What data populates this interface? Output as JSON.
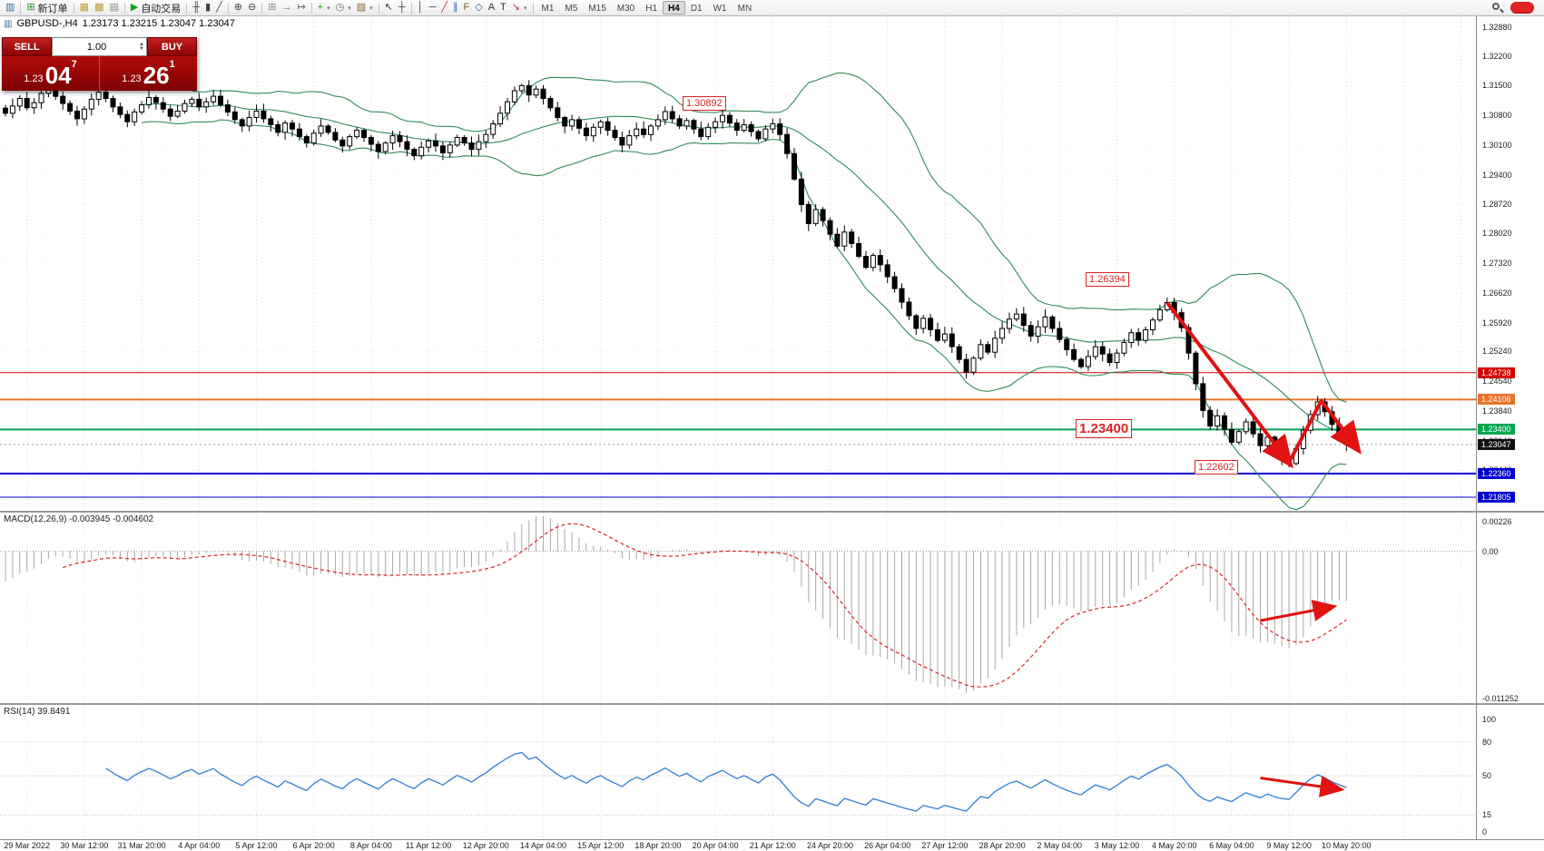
{
  "toolbar": {
    "icons": [
      {
        "n": "chart-window-icon",
        "g": "▥",
        "c": "#3c6ea5"
      },
      {
        "t": "sep"
      },
      {
        "n": "new-order-button",
        "g": "⊞",
        "c": "#1f8f1f",
        "lbl": "新订单"
      },
      {
        "t": "sep"
      },
      {
        "n": "profiles-icon",
        "g": "▦",
        "c": "#c49a3c"
      },
      {
        "n": "charts-window-icon",
        "g": "▩",
        "c": "#c49a3c"
      },
      {
        "n": "data-window-icon",
        "g": "▤",
        "c": "#8a8a8a"
      },
      {
        "t": "sep"
      },
      {
        "n": "auto-trading-button",
        "g": "▶",
        "c": "#12a012",
        "lbl": "自动交易"
      },
      {
        "t": "sep"
      },
      {
        "n": "bar-chart-icon",
        "g": "╫",
        "c": "#444444"
      },
      {
        "n": "candlestick-chart-icon",
        "g": "▮",
        "c": "#444444"
      },
      {
        "n": "line-chart-icon",
        "g": "╱",
        "c": "#444444"
      },
      {
        "t": "sep"
      },
      {
        "n": "zoom-in-icon",
        "g": "⊕",
        "c": "#444444"
      },
      {
        "n": "zoom-out-icon",
        "g": "⊖",
        "c": "#444444"
      },
      {
        "t": "sep"
      },
      {
        "n": "tile-windows-icon",
        "g": "⊞",
        "c": "#8a8a8a"
      },
      {
        "n": "auto-scroll-icon",
        "g": "→",
        "c": "#666666"
      },
      {
        "n": "chart-shift-icon",
        "g": "↦",
        "c": "#666666"
      },
      {
        "t": "sep"
      },
      {
        "n": "indicators-icon",
        "g": "+",
        "c": "#12a012",
        "dd": 1
      },
      {
        "n": "periods-icon",
        "g": "◷",
        "c": "#666666",
        "dd": 1
      },
      {
        "n": "templates-icon",
        "g": "▨",
        "c": "#8a6a3a",
        "dd": 1
      },
      {
        "t": "sep"
      },
      {
        "n": "cursor-icon",
        "g": "↖",
        "c": "#333333"
      },
      {
        "n": "crosshair-icon",
        "g": "┼",
        "c": "#333333"
      },
      {
        "t": "sep"
      },
      {
        "n": "vertical-line-icon",
        "g": "│",
        "c": "#333333"
      },
      {
        "n": "horizontal-line-icon",
        "g": "─",
        "c": "#333333"
      },
      {
        "n": "trendline-icon",
        "g": "╱",
        "c": "#c03030"
      },
      {
        "n": "channel-icon",
        "g": "∥",
        "c": "#3060c0"
      },
      {
        "n": "fibonacci-icon",
        "g": "F",
        "c": "#806020"
      },
      {
        "n": "shapes-icon",
        "g": "◇",
        "c": "#3060c0"
      },
      {
        "n": "text-icon",
        "g": "A",
        "c": "#333333"
      },
      {
        "n": "label-icon",
        "g": "T",
        "c": "#333333"
      },
      {
        "n": "arrows-icon",
        "g": "↘",
        "c": "#c03030",
        "dd": 1
      },
      {
        "t": "sep"
      }
    ],
    "timeframes": [
      "M1",
      "M5",
      "M15",
      "M30",
      "H1",
      "H4",
      "D1",
      "W1",
      "MN"
    ],
    "active_timeframe": "H4"
  },
  "chart_header": {
    "icon": "▥",
    "symbol": "GBPUSD-,H4",
    "ohlc": "1.23173 1.23215 1.23047 1.23047"
  },
  "trade_panel": {
    "sell_label": "SELL",
    "buy_label": "BUY",
    "volume": "1.00",
    "spin_up": "▲",
    "spin_down": "▼",
    "sell_price_prefix": "1.23",
    "sell_price_main": "04",
    "sell_price_sup": "7",
    "buy_price_prefix": "1.23",
    "buy_price_main": "26",
    "buy_price_sup": "1"
  },
  "annotations": {
    "high": "1.30892",
    "peak": "1.26394",
    "level": "1.23400",
    "low": "1.22602"
  },
  "hlines": [
    {
      "price": 1.24738,
      "color": "#d40000",
      "width": 1
    },
    {
      "price": 1.24106,
      "color": "#e8742a",
      "width": 2
    },
    {
      "price": 1.234,
      "color": "#00a650",
      "width": 2
    },
    {
      "price": 1.2236,
      "color": "#0000cd",
      "width": 2
    },
    {
      "price": 1.21805,
      "color": "#0000cd",
      "width": 1
    }
  ],
  "price_scale": {
    "labels": [
      "1.32880",
      "1.32200",
      "1.31500",
      "1.30800",
      "1.30100",
      "1.29400",
      "1.28720",
      "1.28020",
      "1.27320",
      "1.26620",
      "1.25920",
      "1.25240",
      "1.24540",
      "1.23840",
      "1.23140",
      "1.22440",
      "1.21740"
    ],
    "tags": [
      {
        "text": "1.24738",
        "bg": "#d40000"
      },
      {
        "text": "1.24106",
        "bg": "#e8742a"
      },
      {
        "text": "1.23400",
        "bg": "#00a650"
      },
      {
        "text": "1.23047",
        "bg": "#111111"
      },
      {
        "text": "1.22360",
        "bg": "#0000cd"
      },
      {
        "text": "1.21805",
        "bg": "#0000cd"
      }
    ]
  },
  "macd_panel": {
    "label": "MACD(12,26,9) -0.003945 -0.004602",
    "scale_max": "0.00226",
    "scale_zero": "0.00",
    "scale_min": "-0.011252"
  },
  "rsi_panel": {
    "label": "RSI(14) 39.8491",
    "scale_labels": [
      "100",
      "80",
      "50",
      "15",
      "0"
    ],
    "levels": [
      80,
      50,
      15
    ]
  },
  "time_axis": [
    "29 Mar 2022",
    "30 Mar 12:00",
    "31 Mar 20:00",
    "4 Apr 04:00",
    "5 Apr 12:00",
    "6 Apr 20:00",
    "8 Apr 04:00",
    "11 Apr 12:00",
    "12 Apr 20:00",
    "14 Apr 04:00",
    "15 Apr 12:00",
    "18 Apr 20:00",
    "20 Apr 04:00",
    "21 Apr 12:00",
    "24 Apr 20:00",
    "26 Apr 04:00",
    "27 Apr 12:00",
    "28 Apr 20:00",
    "2 May 04:00",
    "3 May 12:00",
    "4 May 20:00",
    "6 May 04:00",
    "9 May 12:00",
    "10 May 20:00"
  ],
  "chart_data": {
    "type": "candlestick",
    "symbol": "GBPUSD-",
    "timeframe": "H4",
    "current_price": 1.23047,
    "y_axis": {
      "min": 1.2172,
      "max": 1.3292
    },
    "closes": [
      1.3085,
      1.3102,
      1.312,
      1.3098,
      1.311,
      1.3132,
      1.3148,
      1.3125,
      1.3108,
      1.309,
      1.3072,
      1.3095,
      1.3118,
      1.3135,
      1.312,
      1.31,
      1.3082,
      1.3065,
      1.3088,
      1.3105,
      1.3122,
      1.311,
      1.3095,
      1.3078,
      1.309,
      1.3108,
      1.3118,
      1.31,
      1.3112,
      1.3125,
      1.3105,
      1.3088,
      1.307,
      1.3055,
      1.3075,
      1.309,
      1.3072,
      1.3058,
      1.304,
      1.3062,
      1.3048,
      1.303,
      1.3015,
      1.3038,
      1.3055,
      1.304,
      1.3022,
      1.3008,
      1.303,
      1.3045,
      1.3028,
      1.3012,
      1.2995,
      1.3015,
      1.3032,
      1.3018,
      1.3,
      1.2985,
      1.3005,
      1.302,
      1.3008,
      1.2992,
      1.301,
      1.3028,
      1.3015,
      1.3,
      1.3018,
      1.3035,
      1.306,
      1.3085,
      1.3112,
      1.3138,
      1.315,
      1.3128,
      1.3142,
      1.312,
      1.3098,
      1.3075,
      1.3055,
      1.307,
      1.305,
      1.3032,
      1.3052,
      1.3065,
      1.3045,
      1.3028,
      1.301,
      1.3032,
      1.3048,
      1.3035,
      1.3055,
      1.307,
      1.3089,
      1.3072,
      1.3055,
      1.3068,
      1.3048,
      1.303,
      1.3052,
      1.3065,
      1.308,
      1.3062,
      1.3045,
      1.3058,
      1.3042,
      1.3025,
      1.3048,
      1.306,
      1.3035,
      1.299,
      1.293,
      1.287,
      1.2825,
      1.2858,
      1.2832,
      1.28,
      1.2772,
      1.2805,
      1.2778,
      1.2748,
      1.2722,
      1.275,
      1.2728,
      1.27,
      1.2672,
      1.264,
      1.2608,
      1.2578,
      1.2602,
      1.2575,
      1.255,
      1.2565,
      1.2535,
      1.2505,
      1.2475,
      1.2508,
      1.254,
      1.2522,
      1.2555,
      1.2578,
      1.26,
      1.2612,
      1.2585,
      1.256,
      1.2582,
      1.2605,
      1.2578,
      1.2552,
      1.2528,
      1.2505,
      1.2488,
      1.2512,
      1.2535,
      1.2518,
      1.2498,
      1.252,
      1.2545,
      1.2568,
      1.255,
      1.2575,
      1.2598,
      1.2622,
      1.2639,
      1.2615,
      1.258,
      1.252,
      1.2448,
      1.2385,
      1.2348,
      1.2372,
      1.234,
      1.231,
      1.2335,
      1.2358,
      1.233,
      1.2302,
      1.2322,
      1.229,
      1.2272,
      1.226,
      1.2295,
      1.2338,
      1.2375,
      1.2405,
      1.2382,
      1.2352,
      1.2328,
      1.23047
    ],
    "key_highs": [
      {
        "i": 72,
        "p": 1.3152
      },
      {
        "i": 92,
        "p": 1.30892
      },
      {
        "i": 162,
        "p": 1.26394
      }
    ],
    "key_lows": [
      {
        "i": 134,
        "p": 1.24738
      },
      {
        "i": 179,
        "p": 1.22602
      }
    ],
    "indicators": {
      "bollinger": {
        "period": 20,
        "deviation": 2,
        "color": "#2e8b57"
      },
      "macd": {
        "fast": 12,
        "slow": 26,
        "signal": 9,
        "main_value": -0.003945,
        "signal_value": -0.004602,
        "bar_color": "#a8a8a8",
        "signal_color": "#dd2222"
      },
      "rsi": {
        "period": 14,
        "value": 39.8491,
        "color": "#2f7ed8"
      }
    },
    "arrows": {
      "color": "#e01212",
      "price": [
        [
          [
            162,
            1.2639
          ],
          [
            179,
            1.2262
          ]
        ],
        [
          [
            179,
            1.2262
          ],
          [
            183.5,
            1.2408
          ],
          [
            188.5,
            1.2295
          ]
        ]
      ],
      "macd": [
        [
          175,
          -0.0053
        ],
        [
          185,
          -0.00425
        ]
      ],
      "rsi": [
        [
          175,
          48
        ],
        [
          186,
          38
        ]
      ]
    }
  }
}
